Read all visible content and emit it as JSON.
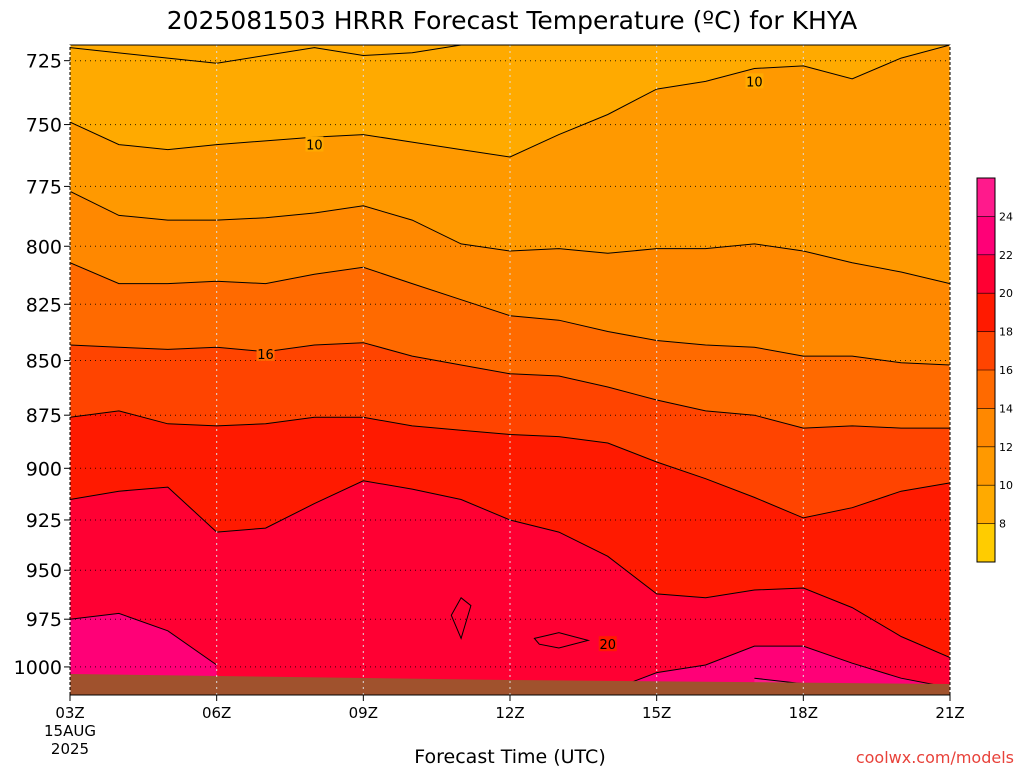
{
  "chart_data": {
    "type": "heatmap",
    "title": "2025081503 HRRR Forecast Temperature (ºC) for KHYA",
    "xlabel": "Forecast Time (UTC)",
    "ylabel": "",
    "credit": "coolwx.com/models",
    "x_ticks": [
      "03Z",
      "06Z",
      "09Z",
      "12Z",
      "15Z",
      "18Z",
      "21Z"
    ],
    "x_start_label": [
      "15AUG",
      "2025"
    ],
    "y_ticks": [
      725,
      750,
      775,
      800,
      825,
      850,
      875,
      900,
      925,
      950,
      975,
      1000
    ],
    "y_scale": "log",
    "ylim": [
      1015,
      719
    ],
    "grid": true,
    "colorbar": {
      "levels": [
        8,
        10,
        12,
        14,
        16,
        18,
        20,
        22,
        24
      ],
      "colors": [
        "#ffcc00",
        "#ffaa00",
        "#ff9900",
        "#ff8800",
        "#ff6a00",
        "#ff4400",
        "#ff1a00",
        "#ff0033",
        "#ff0077",
        "#ff1a8c"
      ]
    },
    "ground_color": "#a0522d",
    "contour_labels": [
      {
        "text": "10",
        "time": 17,
        "p": 733
      },
      {
        "text": "10",
        "time": 8,
        "p": 758
      },
      {
        "text": "16",
        "time": 7,
        "p": 847
      },
      {
        "text": "20",
        "time": 14,
        "p": 988
      }
    ],
    "isotherms": [
      {
        "value": 8,
        "points": [
          [
            3,
            720
          ],
          [
            5,
            724
          ],
          [
            6,
            726
          ],
          [
            8,
            720
          ],
          [
            9,
            723
          ],
          [
            10,
            722
          ],
          [
            11,
            719
          ]
        ]
      },
      {
        "value": 10,
        "points": [
          [
            3,
            749
          ],
          [
            4,
            758
          ],
          [
            5,
            760
          ],
          [
            6,
            758
          ],
          [
            8,
            755
          ],
          [
            9,
            754
          ],
          [
            10,
            757
          ],
          [
            11,
            760
          ],
          [
            12,
            763
          ],
          [
            13,
            754
          ],
          [
            14,
            746
          ],
          [
            15,
            736
          ],
          [
            16,
            733
          ],
          [
            17,
            728
          ],
          [
            18,
            727
          ],
          [
            19,
            732
          ],
          [
            20,
            724
          ],
          [
            21,
            719
          ]
        ]
      },
      {
        "value": 12,
        "points": [
          [
            3,
            777
          ],
          [
            4,
            787
          ],
          [
            5,
            789
          ],
          [
            6,
            789
          ],
          [
            7,
            788
          ],
          [
            8,
            786
          ],
          [
            9,
            783
          ],
          [
            10,
            789
          ],
          [
            11,
            799
          ],
          [
            12,
            802
          ],
          [
            13,
            801
          ],
          [
            14,
            803
          ],
          [
            15,
            801
          ],
          [
            16,
            801
          ],
          [
            17,
            799
          ],
          [
            18,
            802
          ],
          [
            19,
            807
          ],
          [
            20,
            811
          ],
          [
            21,
            816
          ]
        ]
      },
      {
        "value": 14,
        "points": [
          [
            3,
            807
          ],
          [
            4,
            816
          ],
          [
            5,
            816
          ],
          [
            6,
            815
          ],
          [
            7,
            816
          ],
          [
            8,
            812
          ],
          [
            9,
            809
          ],
          [
            10,
            816
          ],
          [
            11,
            823
          ],
          [
            12,
            830
          ],
          [
            13,
            832
          ],
          [
            14,
            837
          ],
          [
            15,
            841
          ],
          [
            16,
            843
          ],
          [
            17,
            844
          ],
          [
            18,
            848
          ],
          [
            19,
            848
          ],
          [
            20,
            851
          ],
          [
            21,
            852
          ]
        ]
      },
      {
        "value": 16,
        "points": [
          [
            3,
            843
          ],
          [
            4,
            844
          ],
          [
            5,
            845
          ],
          [
            6,
            844
          ],
          [
            7,
            846
          ],
          [
            8,
            843
          ],
          [
            9,
            842
          ],
          [
            10,
            848
          ],
          [
            11,
            852
          ],
          [
            12,
            856
          ],
          [
            13,
            857
          ],
          [
            14,
            862
          ],
          [
            15,
            868
          ],
          [
            16,
            873
          ],
          [
            17,
            875
          ],
          [
            18,
            881
          ],
          [
            19,
            880
          ],
          [
            20,
            881
          ],
          [
            21,
            881
          ]
        ]
      },
      {
        "value": 18,
        "points": [
          [
            3,
            876
          ],
          [
            4,
            873
          ],
          [
            5,
            879
          ],
          [
            6,
            880
          ],
          [
            7,
            879
          ],
          [
            8,
            876
          ],
          [
            9,
            876
          ],
          [
            10,
            880
          ],
          [
            11,
            882
          ],
          [
            12,
            884
          ],
          [
            13,
            885
          ],
          [
            14,
            888
          ],
          [
            15,
            897
          ],
          [
            16,
            905
          ],
          [
            17,
            914
          ],
          [
            18,
            924
          ],
          [
            19,
            919
          ],
          [
            20,
            911
          ],
          [
            21,
            907
          ]
        ]
      },
      {
        "value": 20,
        "points": [
          [
            3,
            915
          ],
          [
            4,
            911
          ],
          [
            5,
            909
          ],
          [
            6,
            931
          ],
          [
            7,
            929
          ],
          [
            8,
            917
          ],
          [
            9,
            906
          ],
          [
            10,
            910
          ],
          [
            11,
            915
          ],
          [
            12,
            925
          ],
          [
            13,
            931
          ],
          [
            14,
            943
          ],
          [
            15,
            962
          ],
          [
            16,
            964
          ],
          [
            17,
            960
          ],
          [
            18,
            959
          ],
          [
            19,
            969
          ],
          [
            20,
            984
          ],
          [
            21,
            995
          ]
        ]
      },
      {
        "value": 22,
        "points": [
          [
            3,
            975
          ],
          [
            4,
            972
          ],
          [
            5,
            981
          ],
          [
            6,
            999
          ]
        ]
      },
      {
        "value": 22,
        "points": [
          [
            13,
            1019
          ],
          [
            14,
            1013
          ],
          [
            15,
            1003
          ],
          [
            16,
            999
          ],
          [
            17,
            989
          ],
          [
            18,
            989
          ],
          [
            19,
            998
          ],
          [
            20,
            1006
          ],
          [
            21,
            1011
          ]
        ]
      },
      {
        "value": 24,
        "points": [
          [
            17,
            1006
          ],
          [
            18,
            1009
          ],
          [
            19,
            1018
          ]
        ]
      }
    ]
  }
}
